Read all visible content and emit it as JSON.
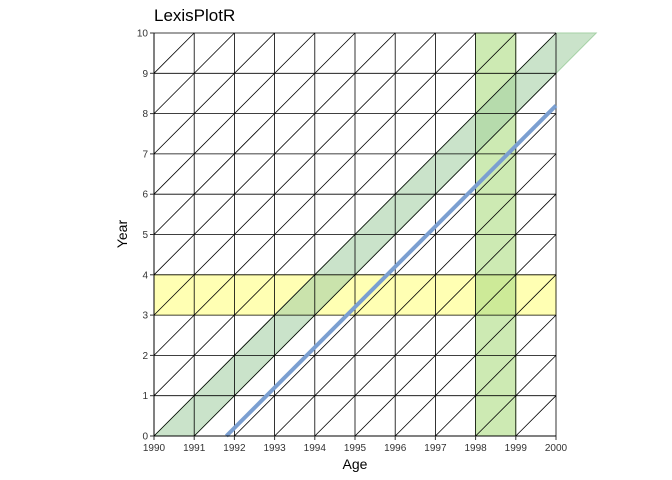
{
  "chart_data": {
    "type": "line",
    "title": "LexisPlotR",
    "xlabel": "Age",
    "ylabel": "Year",
    "x_ticks": [
      "1990",
      "1991",
      "1992",
      "1993",
      "1994",
      "1995",
      "1996",
      "1997",
      "1998",
      "1999",
      "2000"
    ],
    "y_ticks": [
      "0",
      "1",
      "2",
      "3",
      "4",
      "5",
      "6",
      "7",
      "8",
      "9",
      "10"
    ],
    "xlim": [
      1990,
      2000
    ],
    "ylim": [
      0,
      10
    ],
    "grid": true,
    "grid_style": "lexis-triangles",
    "highlights": [
      {
        "kind": "year",
        "from": 3,
        "to": 4,
        "color": "#ffff99"
      },
      {
        "kind": "age",
        "from": 1998,
        "to": 1999,
        "color": "#b2df8a"
      },
      {
        "kind": "cohort",
        "from": 1990,
        "to": 1991,
        "color": "#a6d1a6"
      }
    ],
    "lifelines": [
      {
        "entry": [
          1991.8,
          0
        ],
        "exit": [
          2000,
          8.2
        ],
        "color": "#7b9fd1"
      }
    ]
  },
  "colors": {
    "grid": "#000000",
    "year_band": "#ffff99",
    "age_band": "#b2df8a",
    "cohort_band": "#a6d1a6",
    "lifeline": "#7b9fd1"
  }
}
